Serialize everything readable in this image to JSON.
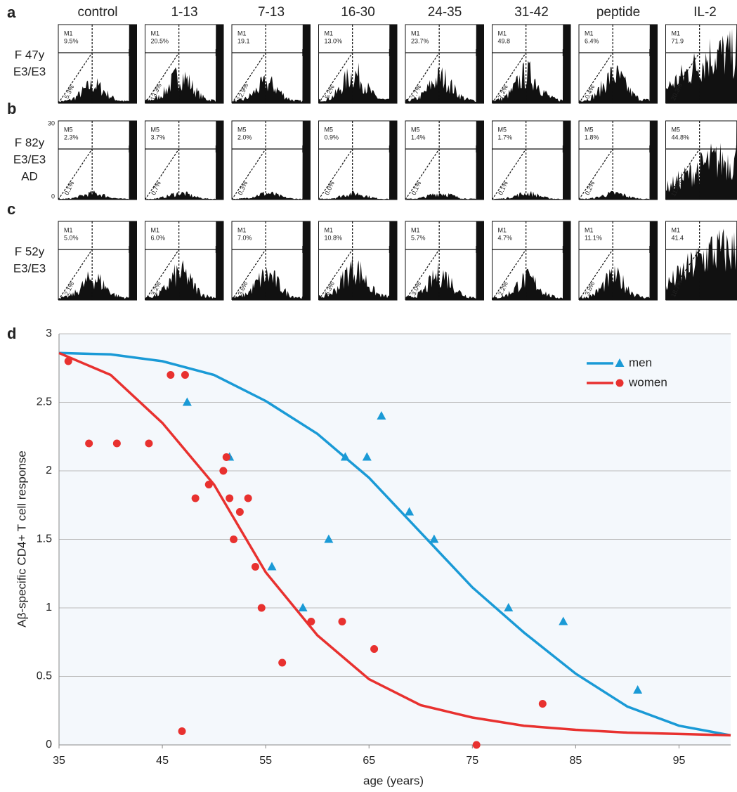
{
  "panels": {
    "columns": [
      "control",
      "1-13",
      "7-13",
      "16-30",
      "24-35",
      "31-42",
      "peptide",
      "IL-2"
    ],
    "rows": [
      {
        "letter": "a",
        "lines": [
          "F 47y",
          "E3/E3"
        ],
        "gate": "M1",
        "cells": [
          {
            "gate_value": "9.5%",
            "diag_value": "5.3%"
          },
          {
            "gate_value": "20.5%",
            "diag_value": "13.3%"
          },
          {
            "gate_value": "19.1",
            "diag_value": "12.9%"
          },
          {
            "gate_value": "13.0%",
            "diag_value": "5.2%"
          },
          {
            "gate_value": "23.7%",
            "diag_value": "7.7%"
          },
          {
            "gate_value": "49.8",
            "diag_value": "7.2%"
          },
          {
            "gate_value": "6.4%",
            "diag_value": "0.4%"
          },
          {
            "gate_value": "71.9",
            "diag_value": "20.3%"
          }
        ]
      },
      {
        "letter": "b",
        "lines": [
          "F 82y",
          "E3/E3",
          "AD"
        ],
        "gate": "M5",
        "axis_labels": [
          "30",
          "0"
        ],
        "cells": [
          {
            "gate_value": "2.3%",
            "diag_value": "0.1%"
          },
          {
            "gate_value": "3.7%",
            "diag_value": "0.7%"
          },
          {
            "gate_value": "2.0%",
            "diag_value": "0.3%"
          },
          {
            "gate_value": "0.9%",
            "diag_value": "0.0%"
          },
          {
            "gate_value": "1.4%",
            "diag_value": "0.1%"
          },
          {
            "gate_value": "1.7%",
            "diag_value": "0.1%"
          },
          {
            "gate_value": "1.8%",
            "diag_value": "0.2%"
          },
          {
            "gate_value": "44.8%",
            "diag_value": "11.8%"
          }
        ]
      },
      {
        "letter": "c",
        "lines": [
          "F 52y",
          "E3/E3"
        ],
        "gate": "M1",
        "cells": [
          {
            "gate_value": "5.0%",
            "diag_value": "2.1%"
          },
          {
            "gate_value": "6.0%",
            "diag_value": "3.2%"
          },
          {
            "gate_value": "7.0%",
            "diag_value": "3.6%"
          },
          {
            "gate_value": "10.8%",
            "diag_value": "6.3%"
          },
          {
            "gate_value": "5.7%",
            "diag_value": "3.0%"
          },
          {
            "gate_value": "4.7%",
            "diag_value": "2.2%"
          },
          {
            "gate_value": "11.1%",
            "diag_value": "3.8%"
          },
          {
            "gate_value": "41.4",
            "diag_value": "18.7%"
          }
        ]
      }
    ]
  },
  "chart_data": {
    "type": "scatter",
    "letter": "d",
    "x_label": "age (years)",
    "y_label": "Aβ-specific CD4+ T cell response",
    "xlim": [
      35,
      100
    ],
    "xticks": [
      35,
      45,
      55,
      65,
      75,
      85,
      95
    ],
    "ylim": [
      0,
      3
    ],
    "yticks": [
      0,
      0.5,
      1,
      1.5,
      2,
      2.5,
      3
    ],
    "grid": true,
    "legend": "upper right",
    "fit_x": [
      35,
      40,
      45,
      50,
      55,
      60,
      65,
      70,
      75,
      80,
      85,
      90,
      95,
      100
    ],
    "series": [
      {
        "name": "men",
        "color": "#1a9ad6",
        "marker": "triangle",
        "x": [
          47.4,
          51.5,
          55.6,
          58.6,
          61.1,
          62.7,
          64.8,
          66.2,
          68.9,
          71.3,
          78.5,
          83.8,
          91.0
        ],
        "values": [
          2.5,
          2.1,
          1.3,
          1.0,
          1.5,
          2.1,
          2.1,
          2.4,
          1.7,
          1.5,
          1.0,
          0.9,
          0.4
        ],
        "fit": [
          2.86,
          2.85,
          2.8,
          2.7,
          2.51,
          2.27,
          1.95,
          1.55,
          1.15,
          0.82,
          0.52,
          0.28,
          0.14,
          0.07
        ]
      },
      {
        "name": "women",
        "color": "#e8312f",
        "marker": "circle",
        "x": [
          35.9,
          37.9,
          40.6,
          43.7,
          45.8,
          47.2,
          46.9,
          49.5,
          48.2,
          50.9,
          51.2,
          51.5,
          53.3,
          52.5,
          51.9,
          54.0,
          54.6,
          56.6,
          59.4,
          62.4,
          65.5,
          75.4,
          81.8
        ],
        "values": [
          2.8,
          2.2,
          2.2,
          2.2,
          2.7,
          2.7,
          0.1,
          1.9,
          1.8,
          2.0,
          2.1,
          1.8,
          1.8,
          1.7,
          1.5,
          1.3,
          1.0,
          0.6,
          0.9,
          0.9,
          0.7,
          0.0,
          0.3
        ],
        "fit": [
          2.86,
          2.7,
          2.35,
          1.9,
          1.26,
          0.8,
          0.48,
          0.29,
          0.2,
          0.14,
          0.11,
          0.09,
          0.08,
          0.07
        ]
      }
    ]
  }
}
